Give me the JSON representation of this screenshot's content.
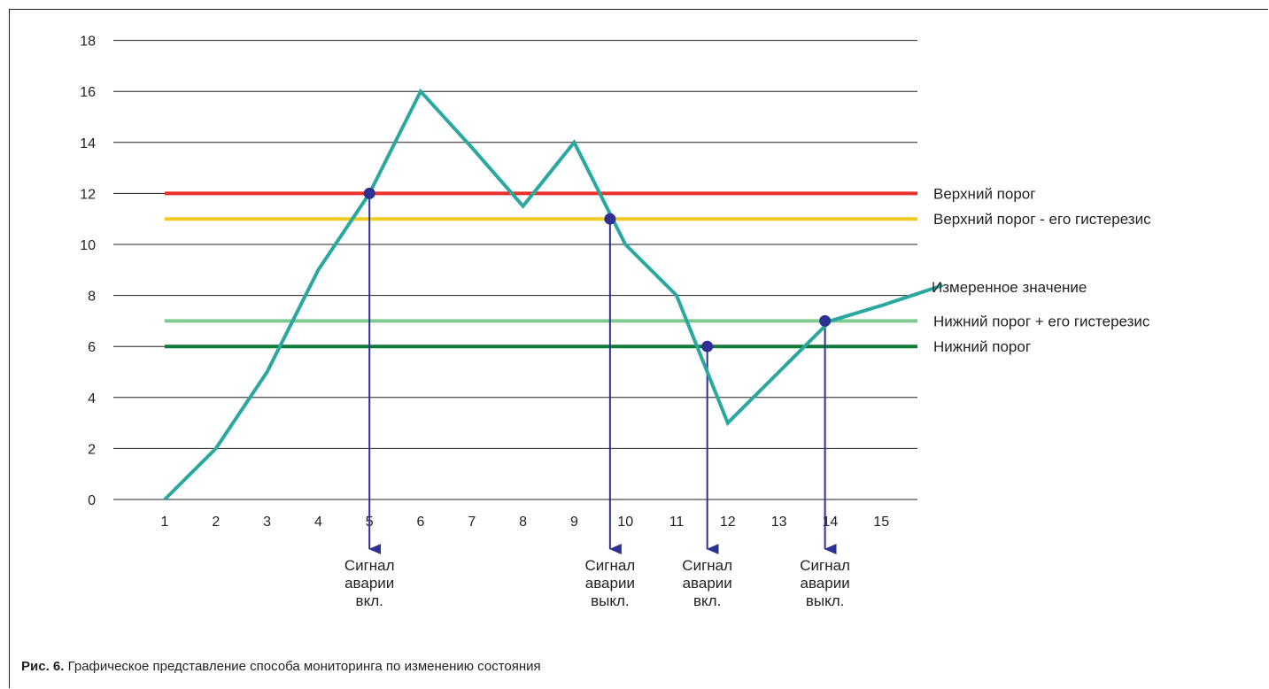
{
  "caption": {
    "figure_label": "Рис. 6.",
    "text": "Графическое представление способа мониторинга по изменению состояния"
  },
  "chart_data": {
    "type": "line",
    "title": "",
    "xlabel": "",
    "ylabel": "",
    "x_ticks": [
      "1",
      "2",
      "3",
      "4",
      "5",
      "6",
      "7",
      "8",
      "9",
      "10",
      "11",
      "12",
      "13",
      "14",
      "15"
    ],
    "y_ticks": [
      "0",
      "2",
      "4",
      "6",
      "8",
      "10",
      "12",
      "14",
      "16",
      "18"
    ],
    "xlim": [
      1,
      16.2
    ],
    "ylim": [
      0,
      18
    ],
    "grid": "horizontal",
    "thresholds": [
      {
        "name": "Верхний порог",
        "value": 12,
        "color": "#e8312b"
      },
      {
        "name": "Верхний порог - его гистерезис",
        "value": 11,
        "color": "#f2cb22"
      },
      {
        "name": "Нижний порог + его гистерезис",
        "value": 7,
        "color": "#7fc990"
      },
      {
        "name": "Нижний порог",
        "value": 6,
        "color": "#0e7a35"
      }
    ],
    "series": [
      {
        "name": "Измеренное значение",
        "color": "#2aa8a0",
        "x": [
          1,
          2,
          3,
          4,
          5,
          6,
          7,
          8,
          9,
          10,
          11,
          12,
          13,
          14,
          15,
          16.2
        ],
        "values": [
          0,
          2,
          5,
          9,
          12,
          16,
          13.8,
          11.5,
          14,
          10,
          8,
          3,
          5,
          7,
          7.6,
          8.4
        ]
      }
    ],
    "alarm_points": [
      {
        "x": 5.0,
        "y": 12,
        "label_lines": [
          "Сигнал",
          "аварии",
          "вкл."
        ]
      },
      {
        "x": 9.7,
        "y": 11,
        "label_lines": [
          "Сигнал",
          "аварии",
          "выкл."
        ]
      },
      {
        "x": 11.6,
        "y": 6,
        "label_lines": [
          "Сигнал",
          "аварии",
          "вкл."
        ]
      },
      {
        "x": 13.9,
        "y": 7,
        "label_lines": [
          "Сигнал",
          "аварии",
          "выкл."
        ]
      }
    ],
    "colors": {
      "marker": "#2e3192",
      "grid": "#231f20",
      "axis": "#231f20"
    }
  }
}
